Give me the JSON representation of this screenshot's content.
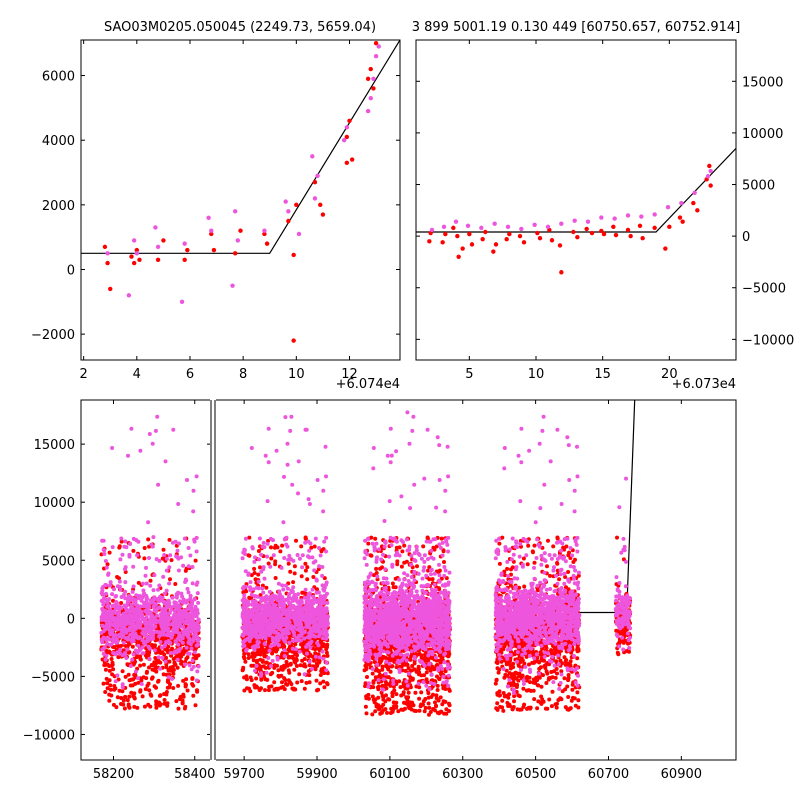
{
  "colors": {
    "red": "#ff0000",
    "pink": "#ee55dd",
    "model": "#000000"
  },
  "chart_data": [
    {
      "id": "top-left",
      "type": "scatter",
      "title": "SAO03M0205.050045 (2249.73, 5659.04)",
      "x_offset_label": "+6.074e4",
      "xlim": [
        1.9,
        13.9
      ],
      "ylim": [
        -2800,
        7100
      ],
      "y_axis_side": "left",
      "xticks": [
        2,
        4,
        6,
        8,
        10,
        12
      ],
      "yticks": [
        -2000,
        0,
        2000,
        4000,
        6000
      ],
      "model_line": [
        [
          1.9,
          500
        ],
        [
          9.0,
          500
        ],
        [
          13.9,
          7100
        ]
      ],
      "series": [
        {
          "name": "red",
          "points": [
            [
              2.8,
              700
            ],
            [
              2.9,
              200
            ],
            [
              3.0,
              -600
            ],
            [
              3.8,
              400
            ],
            [
              3.9,
              200
            ],
            [
              4.0,
              600
            ],
            [
              4.1,
              300
            ],
            [
              4.8,
              300
            ],
            [
              5.0,
              900
            ],
            [
              5.9,
              600
            ],
            [
              5.8,
              300
            ],
            [
              6.8,
              1100
            ],
            [
              6.9,
              600
            ],
            [
              7.7,
              500
            ],
            [
              7.9,
              1200
            ],
            [
              8.8,
              1100
            ],
            [
              8.9,
              800
            ],
            [
              9.7,
              1500
            ],
            [
              9.9,
              450
            ],
            [
              9.9,
              -2200
            ],
            [
              10.0,
              2000
            ],
            [
              10.7,
              2700
            ],
            [
              10.9,
              2000
            ],
            [
              11.0,
              1700
            ],
            [
              11.9,
              4100
            ],
            [
              12.0,
              4600
            ],
            [
              11.9,
              3300
            ],
            [
              12.1,
              3400
            ],
            [
              12.8,
              6200
            ],
            [
              12.9,
              5600
            ],
            [
              13.0,
              7000
            ],
            [
              12.7,
              5900
            ]
          ]
        },
        {
          "name": "pink",
          "points": [
            [
              2.9,
              500
            ],
            [
              3.7,
              -800
            ],
            [
              3.9,
              900
            ],
            [
              4.0,
              500
            ],
            [
              4.7,
              1300
            ],
            [
              4.8,
              700
            ],
            [
              5.7,
              -1000
            ],
            [
              5.8,
              800
            ],
            [
              6.7,
              1600
            ],
            [
              6.8,
              1200
            ],
            [
              7.6,
              -500
            ],
            [
              7.7,
              1800
            ],
            [
              7.8,
              900
            ],
            [
              8.8,
              1200
            ],
            [
              9.6,
              2100
            ],
            [
              9.7,
              1800
            ],
            [
              10.1,
              1100
            ],
            [
              10.6,
              3500
            ],
            [
              10.7,
              2200
            ],
            [
              10.8,
              2900
            ],
            [
              11.8,
              4000
            ],
            [
              11.9,
              4400
            ],
            [
              12.7,
              4900
            ],
            [
              12.8,
              5300
            ],
            [
              12.9,
              5900
            ],
            [
              13.0,
              6600
            ],
            [
              13.1,
              6900
            ]
          ]
        }
      ]
    },
    {
      "id": "top-right",
      "type": "scatter",
      "title": "3 899 5001.19 0.130 449 [60750.657, 60752.914]",
      "x_offset_label": "+6.073e4",
      "xlim": [
        1.0,
        25.0
      ],
      "ylim": [
        -12000,
        19000
      ],
      "y_axis_side": "right",
      "xticks": [
        5,
        10,
        15,
        20
      ],
      "yticks": [
        -10000,
        -5000,
        0,
        5000,
        10000,
        15000
      ],
      "model_line": [
        [
          1.0,
          400
        ],
        [
          19.0,
          400
        ],
        [
          25.0,
          8500
        ]
      ],
      "series": [
        {
          "name": "red",
          "points": [
            [
              2.0,
              -500
            ],
            [
              2.1,
              300
            ],
            [
              3.0,
              -600
            ],
            [
              3.2,
              200
            ],
            [
              3.8,
              800
            ],
            [
              4.1,
              0
            ],
            [
              4.2,
              -2000
            ],
            [
              4.5,
              -1200
            ],
            [
              5.0,
              200
            ],
            [
              5.2,
              -800
            ],
            [
              6.0,
              -300
            ],
            [
              6.2,
              400
            ],
            [
              6.8,
              -1500
            ],
            [
              7.0,
              -800
            ],
            [
              7.8,
              -300
            ],
            [
              8.0,
              200
            ],
            [
              8.8,
              0
            ],
            [
              9.1,
              -600
            ],
            [
              10.1,
              300
            ],
            [
              10.3,
              -200
            ],
            [
              11.0,
              600
            ],
            [
              11.2,
              -400
            ],
            [
              11.8,
              -900
            ],
            [
              11.9,
              -3500
            ],
            [
              12.8,
              400
            ],
            [
              13.1,
              -100
            ],
            [
              13.8,
              700
            ],
            [
              14.2,
              300
            ],
            [
              14.9,
              500
            ],
            [
              15.1,
              200
            ],
            [
              15.8,
              900
            ],
            [
              16.0,
              100
            ],
            [
              16.9,
              600
            ],
            [
              17.1,
              0
            ],
            [
              17.8,
              1000
            ],
            [
              18.0,
              -200
            ],
            [
              18.9,
              800
            ],
            [
              19.7,
              -1200
            ],
            [
              20.0,
              900
            ],
            [
              20.8,
              1800
            ],
            [
              21.0,
              1400
            ],
            [
              21.8,
              3200
            ],
            [
              22.1,
              2500
            ],
            [
              22.8,
              5500
            ],
            [
              23.0,
              6800
            ],
            [
              23.1,
              4900
            ]
          ]
        },
        {
          "name": "pink",
          "points": [
            [
              2.2,
              600
            ],
            [
              3.1,
              900
            ],
            [
              4.0,
              1400
            ],
            [
              4.9,
              1000
            ],
            [
              5.9,
              800
            ],
            [
              6.9,
              1200
            ],
            [
              7.9,
              900
            ],
            [
              8.9,
              700
            ],
            [
              9.9,
              1100
            ],
            [
              10.9,
              900
            ],
            [
              11.9,
              1200
            ],
            [
              12.9,
              1500
            ],
            [
              13.9,
              1400
            ],
            [
              14.9,
              1800
            ],
            [
              15.9,
              1700
            ],
            [
              16.9,
              2000
            ],
            [
              17.9,
              1900
            ],
            [
              18.9,
              2100
            ],
            [
              19.9,
              2800
            ],
            [
              20.9,
              3200
            ],
            [
              21.9,
              4200
            ],
            [
              22.9,
              5800
            ],
            [
              23.1,
              6300
            ]
          ]
        }
      ]
    },
    {
      "id": "bottom-light-curve",
      "type": "scatter",
      "title": "",
      "ylim": [
        -12200,
        18800
      ],
      "y_axis_side": "left",
      "yticks": [
        -10000,
        -5000,
        0,
        5000,
        10000,
        15000
      ],
      "panels": [
        {
          "xlim": [
            58120,
            58440
          ],
          "xticks": [
            58200,
            58400
          ]
        },
        {
          "xlim": [
            59620,
            61050
          ],
          "xticks": [
            59700,
            59900,
            60100,
            60300,
            60500,
            60700,
            60900
          ]
        }
      ],
      "model_line": [
        [
          60610,
          500
        ],
        [
          60750,
          500
        ],
        [
          60772,
          18800
        ]
      ],
      "season_groups": [
        {
          "xmin": 58170,
          "xmax": 58410,
          "n": 900,
          "core_mean": -600,
          "spread": 1400,
          "low_tail": -6000
        },
        {
          "xmin": 59695,
          "xmax": 59930,
          "n": 1000,
          "core_mean": -300,
          "spread": 1200,
          "low_tail": -5000
        },
        {
          "xmin": 60030,
          "xmax": 60265,
          "n": 1500,
          "core_mean": -500,
          "spread": 1500,
          "low_tail": -6500
        },
        {
          "xmin": 60390,
          "xmax": 60620,
          "n": 1200,
          "core_mean": -200,
          "spread": 1400,
          "low_tail": -6500
        },
        {
          "xmin": 60720,
          "xmax": 60760,
          "n": 120,
          "core_mean": 300,
          "spread": 900,
          "low_tail": -3000
        }
      ]
    }
  ]
}
